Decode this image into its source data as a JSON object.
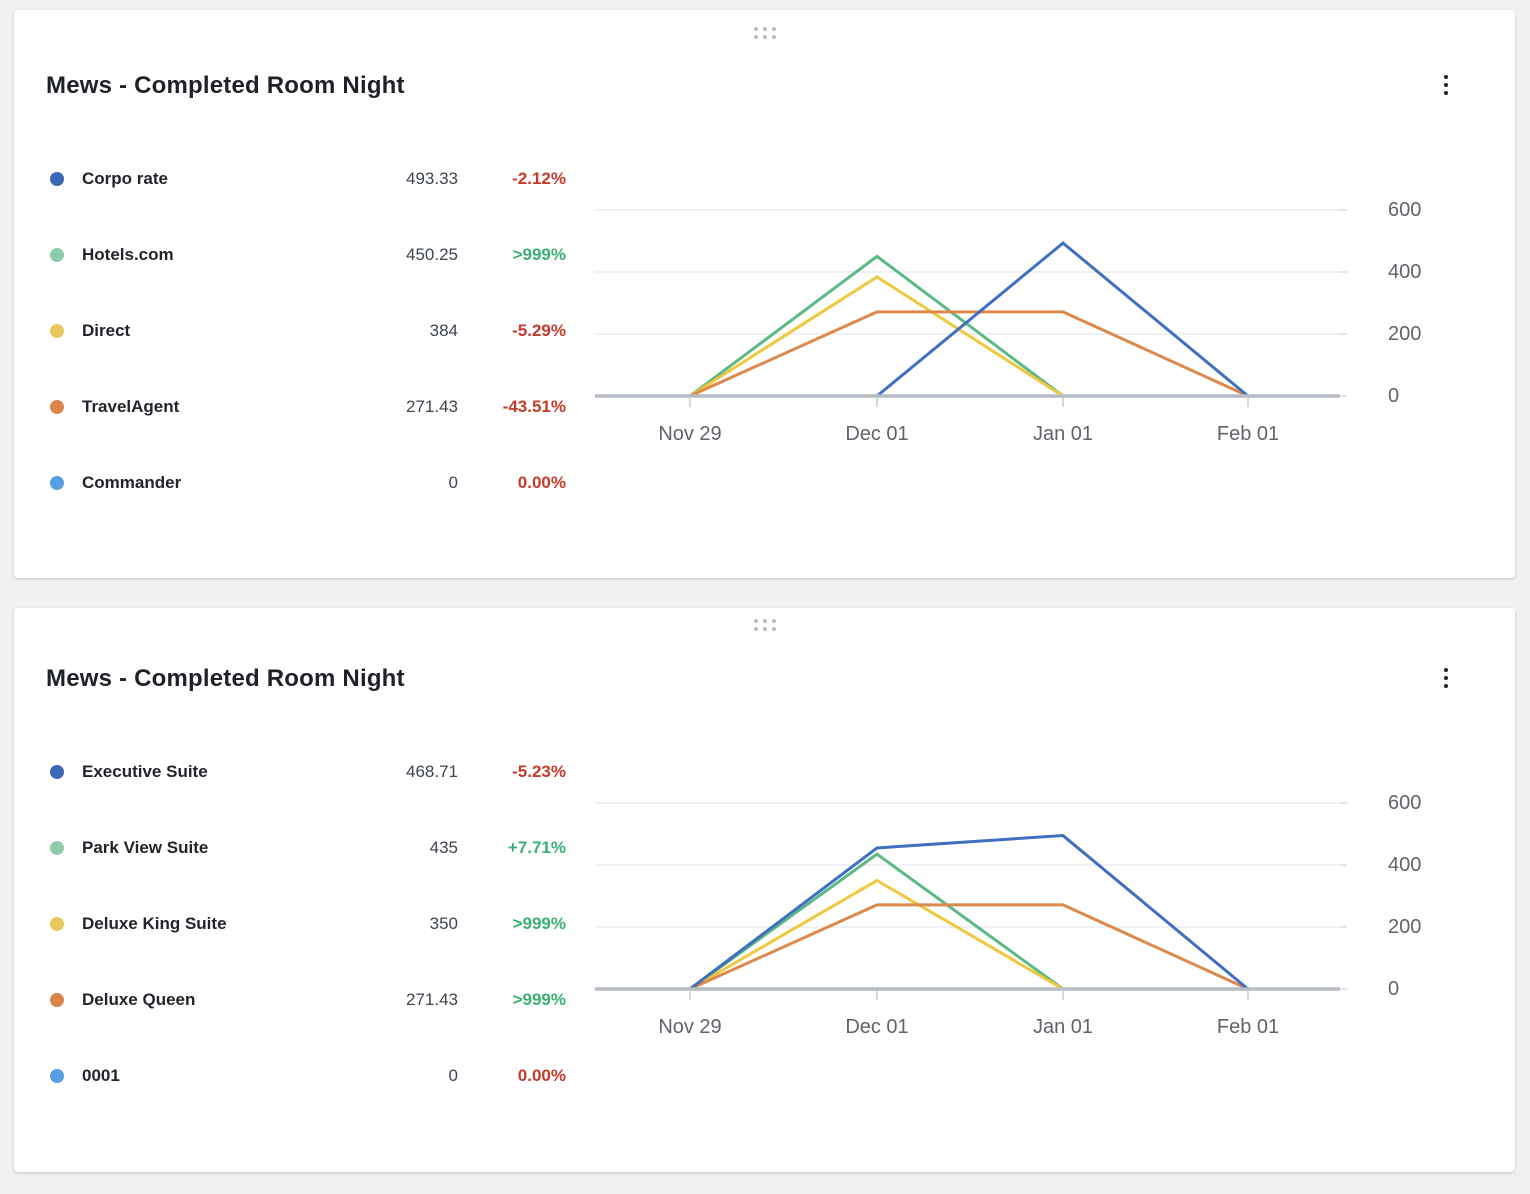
{
  "page": {
    "background": "#f0f1f3"
  },
  "status_colors": {
    "negative": "#c43a2b",
    "positive": "#3aaf73"
  },
  "cards": [
    {
      "title": "Mews - Completed Room Night",
      "menu_icon": "kebab-menu-icon",
      "drag_handle_icon": "drag-handle-dots-icon",
      "legend": [
        {
          "label": "Corpo rate",
          "value": "493.33",
          "pct": "-2.12%",
          "pct_color": "#c43a2b",
          "dot_color": "#3b68b4"
        },
        {
          "label": "Hotels.com",
          "value": "450.25",
          "pct": ">999%",
          "pct_color": "#3aaf73",
          "dot_color": "#8ecbaa"
        },
        {
          "label": "Direct",
          "value": "384",
          "pct": "-5.29%",
          "pct_color": "#c43a2b",
          "dot_color": "#e8c75c"
        },
        {
          "label": "TravelAgent",
          "value": "271.43",
          "pct": "-43.51%",
          "pct_color": "#c43a2b",
          "dot_color": "#dc8449"
        },
        {
          "label": "Commander",
          "value": "0",
          "pct": "0.00%",
          "pct_color": "#c43a2b",
          "dot_color": "#55a0e2"
        }
      ]
    },
    {
      "title": "Mews - Completed Room Night",
      "menu_icon": "kebab-menu-icon",
      "drag_handle_icon": "drag-handle-dots-icon",
      "legend": [
        {
          "label": "Executive Suite",
          "value": "468.71",
          "pct": "-5.23%",
          "pct_color": "#c43a2b",
          "dot_color": "#3b68b4"
        },
        {
          "label": "Park View Suite",
          "value": "435",
          "pct": "+7.71%",
          "pct_color": "#3aaf73",
          "dot_color": "#8ecbaa"
        },
        {
          "label": "Deluxe King Suite",
          "value": "350",
          "pct": ">999%",
          "pct_color": "#3aaf73",
          "dot_color": "#e8c75c"
        },
        {
          "label": "Deluxe Queen",
          "value": "271.43",
          "pct": ">999%",
          "pct_color": "#3aaf73",
          "dot_color": "#dc8449"
        },
        {
          "label": "0001",
          "value": "0",
          "pct": "0.00%",
          "pct_color": "#c43a2b",
          "dot_color": "#55a0e2"
        }
      ]
    }
  ],
  "chart_data": [
    {
      "type": "line",
      "title": "Mews - Completed Room Night",
      "xlabel": "",
      "ylabel": "",
      "categories": [
        "Nov 29",
        "Dec 01",
        "Jan 01",
        "Feb 01"
      ],
      "yticks": [
        0,
        200,
        400,
        600
      ],
      "ylim": [
        0,
        645
      ],
      "grid": true,
      "y_axis_side": "right",
      "legend_position": "left",
      "series": [
        {
          "name": "Corpo rate",
          "color": "#3f70bf",
          "values": [
            0,
            0,
            493.33,
            0
          ]
        },
        {
          "name": "Hotels.com",
          "color": "#5cb983",
          "values": [
            0,
            450.25,
            0,
            0
          ]
        },
        {
          "name": "Direct",
          "color": "#eec83f",
          "values": [
            0,
            384,
            0,
            0
          ]
        },
        {
          "name": "TravelAgent",
          "color": "#dc8a4c",
          "values": [
            0,
            271.43,
            271.43,
            0
          ]
        },
        {
          "name": "Commander",
          "color": "#55a0e2",
          "values": [
            0,
            0,
            0,
            0
          ]
        }
      ]
    },
    {
      "type": "line",
      "title": "Mews - Completed Room Night",
      "xlabel": "",
      "ylabel": "",
      "categories": [
        "Nov 29",
        "Dec 01",
        "Jan 01",
        "Feb 01"
      ],
      "yticks": [
        0,
        200,
        400,
        600
      ],
      "ylim": [
        0,
        645
      ],
      "grid": true,
      "y_axis_side": "right",
      "legend_position": "left",
      "series": [
        {
          "name": "Executive Suite",
          "color": "#3f70bf",
          "values": [
            0,
            455,
            495,
            0
          ]
        },
        {
          "name": "Park View Suite",
          "color": "#5cb983",
          "values": [
            0,
            435,
            0,
            0
          ]
        },
        {
          "name": "Deluxe King Suite",
          "color": "#eec83f",
          "values": [
            0,
            350,
            0,
            0
          ]
        },
        {
          "name": "Deluxe Queen",
          "color": "#dc8a4c",
          "values": [
            0,
            271.43,
            271.43,
            0
          ]
        },
        {
          "name": "0001",
          "color": "#55a0e2",
          "values": [
            0,
            0,
            0,
            0
          ]
        }
      ]
    }
  ]
}
